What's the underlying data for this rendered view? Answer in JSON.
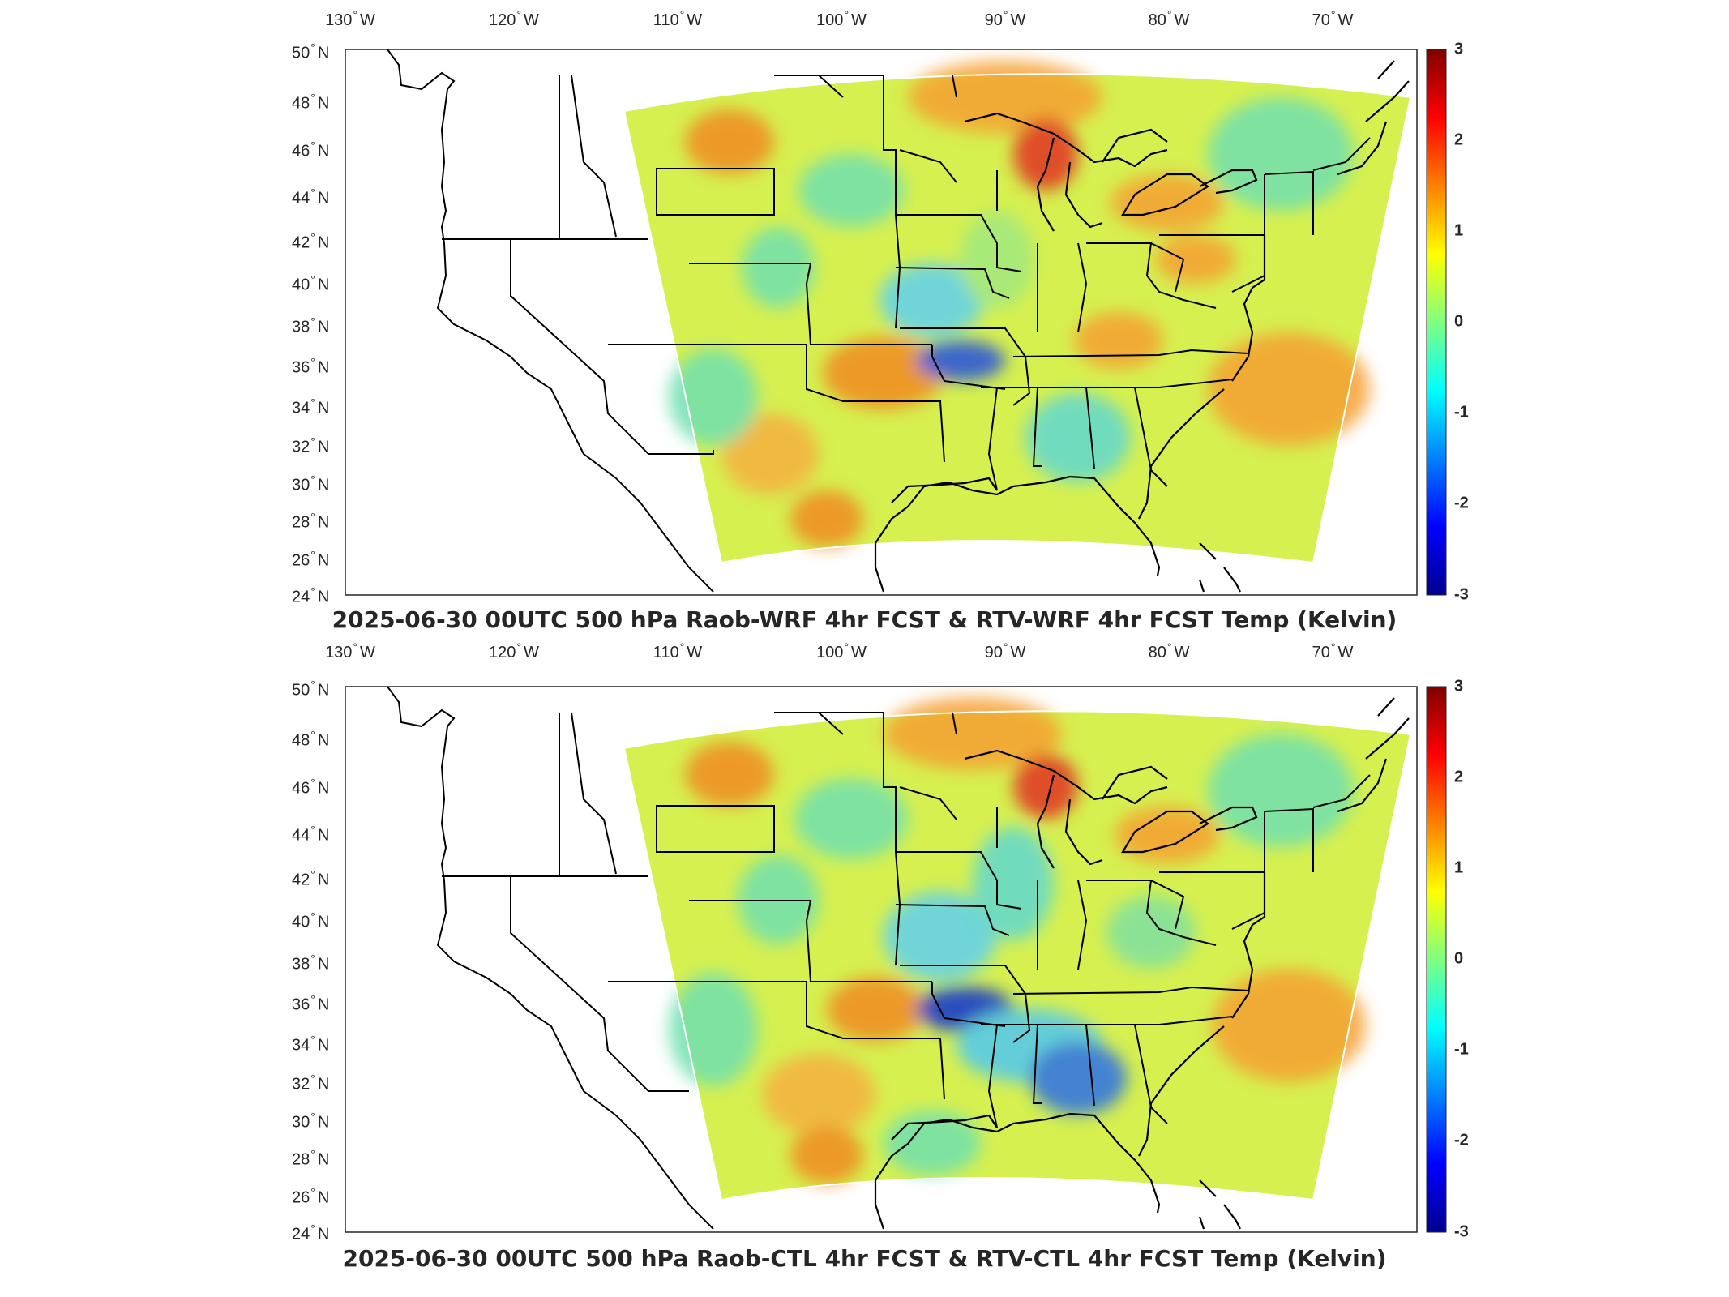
{
  "colorbar": {
    "ticks": [
      "3",
      "2",
      "1",
      "0",
      "-1",
      "-2",
      "-3"
    ],
    "range": [
      -3,
      3
    ],
    "colormap": "jet",
    "colors": [
      "#00008f",
      "#0000ff",
      "#0080ff",
      "#00ffff",
      "#80ff80",
      "#ffff00",
      "#ff8000",
      "#ff0000",
      "#800000"
    ]
  },
  "lon_labels": [
    "130°W",
    "120°W",
    "110°W",
    "100°W",
    "90°W",
    "80°W",
    "70°W"
  ],
  "lat_labels": [
    "50°N",
    "48°N",
    "46°N",
    "44°N",
    "42°N",
    "40°N",
    "38°N",
    "36°N",
    "34°N",
    "32°N",
    "30°N",
    "28°N",
    "26°N",
    "24°N"
  ],
  "panels": [
    {
      "id": "top",
      "title": "2025-06-30 00UTC 500 hPa Raob-WRF 4hr FCST & RTV-WRF 4hr FCST Temp (Kelvin)",
      "lon_labels": [
        "130°W",
        "120°W",
        "110°W",
        "100°W",
        "90°W",
        "80°W",
        "70°W"
      ],
      "lat_labels": [
        "50°N",
        "48°N",
        "46°N",
        "44°N",
        "42°N",
        "40°N",
        "38°N",
        "36°N",
        "34°N",
        "32°N",
        "30°N",
        "28°N",
        "26°N",
        "24°N"
      ],
      "colorbar_ticks": [
        "3",
        "2",
        "1",
        "0",
        "-1",
        "-2",
        "-3"
      ]
    },
    {
      "id": "bottom",
      "title": "2025-06-30 00UTC 500 hPa Raob-CTL 4hr FCST & RTV-CTL 4hr FCST Temp (Kelvin)",
      "lon_labels": [
        "130°W",
        "120°W",
        "110°W",
        "100°W",
        "90°W",
        "80°W",
        "70°W"
      ],
      "lat_labels": [
        "50°N",
        "48°N",
        "46°N",
        "44°N",
        "42°N",
        "40°N",
        "38°N",
        "36°N",
        "34°N",
        "32°N",
        "30°N",
        "28°N",
        "26°N",
        "24°N"
      ],
      "colorbar_ticks": [
        "3",
        "2",
        "1",
        "0",
        "-1",
        "-2",
        "-3"
      ]
    }
  ]
}
